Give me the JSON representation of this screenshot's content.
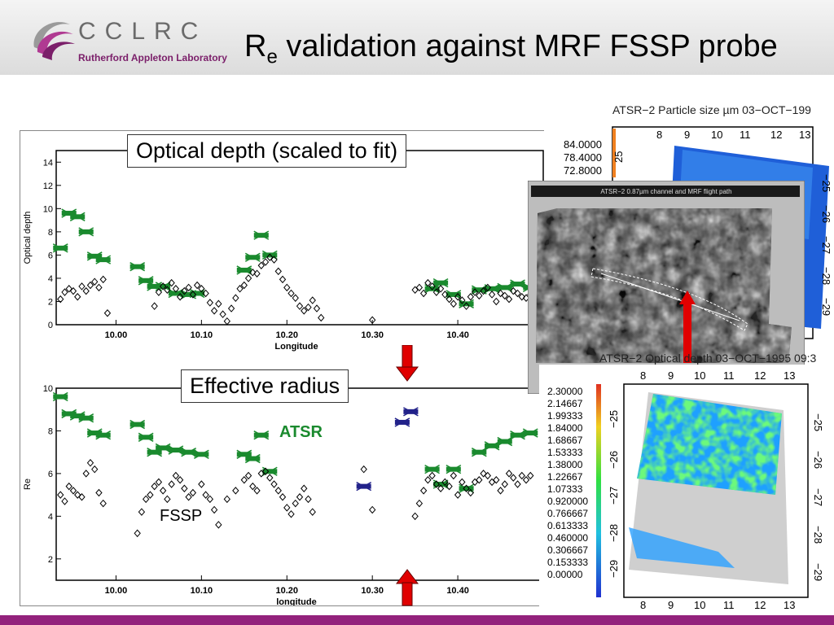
{
  "header": {
    "logo_text": "CCLRC",
    "logo_sub": "Rutherford Appleton Laboratory",
    "title_main": "R",
    "title_sub": "e",
    "title_rest": " validation against MRF FSSP probe"
  },
  "callouts": {
    "optical_depth": "Optical depth (scaled to fit)",
    "effective_radius": "Effective radius"
  },
  "legend": {
    "atsr": "ATSR",
    "fssp": "FSSP"
  },
  "colors": {
    "atsr": "#1a8a2e",
    "atsr_alt": "#22228a",
    "fssp": "#000000",
    "arrow": "#e00000",
    "accent_bar": "#93227c"
  },
  "maps": {
    "particle_title": "ATSR−2 Particle size µm 03−OCT−199",
    "particle_colorbar": [
      "84.0000",
      "78.4000",
      "72.8000"
    ],
    "particle_top_ticks": [
      "8",
      "9",
      "10",
      "11",
      "12",
      "13"
    ],
    "particle_right_ticks": [
      "−25",
      "−26",
      "−27",
      "−28",
      "−29"
    ],
    "particle_left_tick": "25",
    "channel_title": "ATSR−2 0.87µm channel and MRF flight path",
    "od_title": "ATSR−2 Optical depth 03−OCT−1995 09:3",
    "od_colorbar": [
      "2.30000",
      "2.14667",
      "1.99333",
      "1.84000",
      "1.68667",
      "1.53333",
      "1.38000",
      "1.22667",
      "1.07333",
      "0.920000",
      "0.766667",
      "0.613333",
      "0.460000",
      "0.306667",
      "0.153333",
      "0.00000"
    ],
    "od_ticks_x": [
      "8",
      "9",
      "10",
      "11",
      "12",
      "13"
    ],
    "od_ticks_y": [
      "−25",
      "−26",
      "−27",
      "−28",
      "−29"
    ]
  },
  "chart_data": [
    {
      "type": "scatter",
      "title": "",
      "xlabel": "Longitude",
      "ylabel": "Optical depth",
      "xlim": [
        9.93,
        10.5
      ],
      "ylim": [
        0,
        15
      ],
      "xticks": [
        "10.00",
        "10.10",
        "10.20",
        "10.30",
        "10.40"
      ],
      "yticks": [
        "0",
        "2",
        "4",
        "6",
        "8",
        "10",
        "12",
        "14"
      ],
      "series": [
        {
          "name": "ATSR",
          "x": [
            9.935,
            9.945,
            9.955,
            9.965,
            9.975,
            9.985,
            10.025,
            10.035,
            10.045,
            10.055,
            10.07,
            10.085,
            10.095,
            10.15,
            10.16,
            10.17,
            10.18,
            10.37,
            10.38,
            10.395,
            10.41,
            10.425,
            10.44,
            10.455,
            10.47,
            10.485
          ],
          "y": [
            6.6,
            9.6,
            9.3,
            8.0,
            5.9,
            5.6,
            5.0,
            3.8,
            3.3,
            3.3,
            2.7,
            2.6,
            2.7,
            4.7,
            5.8,
            7.7,
            6.0,
            3.1,
            3.6,
            2.6,
            1.8,
            3.0,
            3.1,
            3.2,
            3.5,
            3.2
          ]
        },
        {
          "name": "FSSP",
          "x": [
            9.935,
            9.94,
            9.945,
            9.95,
            9.955,
            9.96,
            9.965,
            9.97,
            9.975,
            9.98,
            9.985,
            9.99,
            10.045,
            10.05,
            10.055,
            10.06,
            10.065,
            10.07,
            10.075,
            10.08,
            10.085,
            10.09,
            10.095,
            10.1,
            10.105,
            10.11,
            10.115,
            10.12,
            10.125,
            10.13,
            10.135,
            10.14,
            10.145,
            10.15,
            10.155,
            10.16,
            10.165,
            10.17,
            10.175,
            10.18,
            10.185,
            10.19,
            10.195,
            10.2,
            10.205,
            10.21,
            10.215,
            10.22,
            10.225,
            10.23,
            10.235,
            10.24,
            10.3,
            10.35,
            10.355,
            10.36,
            10.365,
            10.37,
            10.375,
            10.38,
            10.385,
            10.39,
            10.395,
            10.4,
            10.405,
            10.41,
            10.415,
            10.42,
            10.425,
            10.43,
            10.435,
            10.44,
            10.445,
            10.45,
            10.455,
            10.46,
            10.465,
            10.47,
            10.475,
            10.48,
            10.485
          ],
          "y": [
            2.2,
            2.8,
            3.1,
            2.9,
            2.4,
            3.3,
            2.9,
            3.4,
            3.7,
            3.2,
            3.9,
            1.0,
            1.6,
            2.8,
            3.3,
            3.0,
            3.6,
            3.1,
            2.4,
            2.9,
            3.2,
            2.6,
            3.4,
            3.1,
            2.7,
            1.9,
            1.2,
            1.8,
            0.9,
            0.3,
            1.4,
            2.3,
            3.1,
            3.4,
            4.0,
            4.5,
            4.4,
            5.1,
            5.4,
            5.8,
            5.6,
            4.6,
            3.9,
            3.2,
            2.7,
            2.3,
            1.6,
            1.2,
            1.5,
            2.1,
            1.4,
            0.6,
            0.4,
            3.0,
            3.2,
            2.7,
            3.6,
            3.3,
            2.8,
            3.1,
            2.6,
            2.2,
            1.8,
            2.4,
            2.1,
            1.6,
            2.4,
            2.8,
            2.5,
            2.9,
            3.2,
            2.6,
            2.0,
            2.7,
            2.5,
            2.2,
            2.9,
            2.7,
            2.4,
            2.3,
            2.6
          ]
        }
      ]
    },
    {
      "type": "scatter",
      "title": "",
      "xlabel": "longitude",
      "ylabel": "Re",
      "xlim": [
        9.93,
        10.5
      ],
      "ylim": [
        1,
        10
      ],
      "xticks": [
        "10.00",
        "10.10",
        "10.20",
        "10.30",
        "10.40"
      ],
      "yticks": [
        "2",
        "4",
        "6",
        "8",
        "10"
      ],
      "series": [
        {
          "name": "ATSR",
          "x": [
            9.935,
            9.945,
            9.955,
            9.965,
            9.975,
            9.985,
            10.025,
            10.035,
            10.045,
            10.055,
            10.07,
            10.085,
            10.1,
            10.15,
            10.16,
            10.17,
            10.18,
            10.37,
            10.38,
            10.395,
            10.41,
            10.425,
            10.44,
            10.455,
            10.47,
            10.485
          ],
          "y": [
            9.6,
            8.8,
            8.7,
            8.6,
            7.9,
            7.8,
            8.3,
            7.7,
            7.0,
            7.2,
            7.1,
            7.0,
            6.9,
            6.9,
            6.7,
            7.8,
            6.1,
            6.2,
            5.5,
            6.2,
            5.3,
            7.0,
            7.3,
            7.5,
            7.8,
            7.9
          ]
        },
        {
          "name": "ATSR (blue)",
          "x": [
            10.29,
            10.335,
            10.345
          ],
          "y": [
            5.4,
            8.4,
            8.9
          ]
        },
        {
          "name": "FSSP",
          "x": [
            9.935,
            9.94,
            9.945,
            9.95,
            9.955,
            9.96,
            9.965,
            9.97,
            9.975,
            9.98,
            9.985,
            10.025,
            10.03,
            10.035,
            10.04,
            10.045,
            10.05,
            10.055,
            10.06,
            10.065,
            10.07,
            10.075,
            10.08,
            10.085,
            10.09,
            10.1,
            10.105,
            10.11,
            10.115,
            10.12,
            10.13,
            10.14,
            10.15,
            10.155,
            10.16,
            10.165,
            10.17,
            10.175,
            10.18,
            10.185,
            10.19,
            10.195,
            10.2,
            10.205,
            10.21,
            10.215,
            10.22,
            10.225,
            10.23,
            10.29,
            10.3,
            10.35,
            10.355,
            10.36,
            10.365,
            10.37,
            10.375,
            10.38,
            10.385,
            10.39,
            10.395,
            10.4,
            10.405,
            10.41,
            10.415,
            10.42,
            10.425,
            10.43,
            10.435,
            10.44,
            10.445,
            10.45,
            10.455,
            10.46,
            10.465,
            10.47,
            10.475,
            10.48,
            10.485
          ],
          "y": [
            5.0,
            4.7,
            5.4,
            5.2,
            5.0,
            4.9,
            6.0,
            6.5,
            6.2,
            5.1,
            4.6,
            3.2,
            4.2,
            4.8,
            5.0,
            5.4,
            5.6,
            5.2,
            4.8,
            5.5,
            5.9,
            5.7,
            5.3,
            4.9,
            5.1,
            5.5,
            5.0,
            4.8,
            4.3,
            3.6,
            4.8,
            5.2,
            5.7,
            5.9,
            5.4,
            5.2,
            6.0,
            6.1,
            5.8,
            5.5,
            5.2,
            4.9,
            4.4,
            4.1,
            4.6,
            4.9,
            5.3,
            4.8,
            4.2,
            6.2,
            4.3,
            4.0,
            4.6,
            5.2,
            5.7,
            5.9,
            5.5,
            5.3,
            5.6,
            5.4,
            5.9,
            5.0,
            5.6,
            5.3,
            5.1,
            5.6,
            5.7,
            6.0,
            5.9,
            5.6,
            5.7,
            5.2,
            5.5,
            6.0,
            5.8,
            5.5,
            5.9,
            5.7,
            5.9
          ]
        }
      ]
    }
  ]
}
